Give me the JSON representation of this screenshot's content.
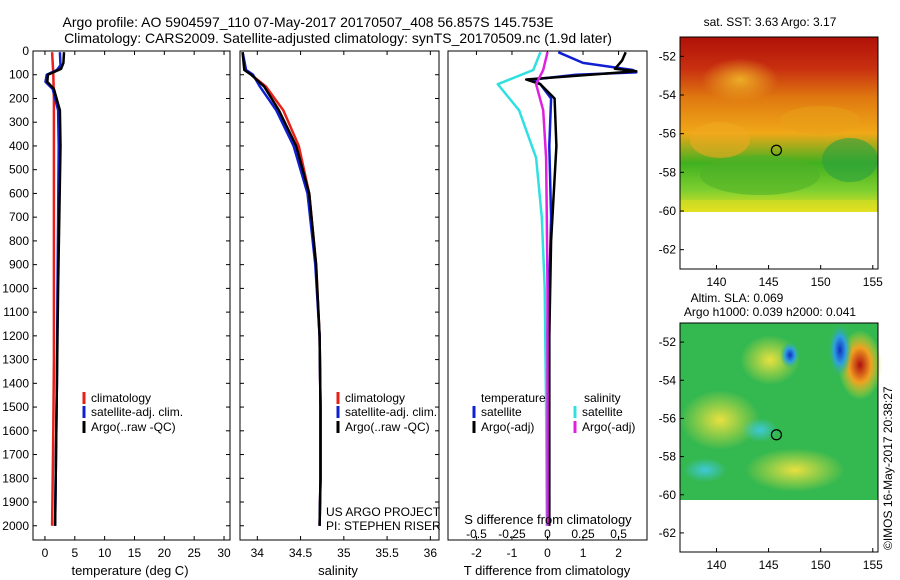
{
  "title_line1": "Argo profile: AO 5904597_110 07-May-2017 20170507_408 56.857S 145.753E",
  "title_line2": "Climatology: CARS2009. Satellite-adjusted climatology: synTS_20170509.nc (1.9d later)",
  "credit": "©IMOS 16-May-2017 20:38:27",
  "project_line1": "US ARGO PROJECT",
  "project_line2": "PI: STEPHEN RISER",
  "colors": {
    "climatology": "#e8201a",
    "satellite": "#1020d0",
    "argo": "#000000",
    "salinity_satellite": "#30e0e0",
    "salinity_argo": "#e020e0"
  },
  "chart_data": [
    {
      "id": "temperature",
      "type": "line",
      "xlabel": "temperature (deg C)",
      "ylabel": "",
      "xlim": [
        -2,
        31
      ],
      "ylim": [
        2060,
        0
      ],
      "xticks": [
        0,
        5,
        10,
        15,
        20,
        25,
        30
      ],
      "yticks": [
        0,
        100,
        200,
        300,
        400,
        500,
        600,
        700,
        800,
        900,
        1000,
        1100,
        1200,
        1300,
        1400,
        1500,
        1600,
        1700,
        1800,
        1900,
        2000
      ],
      "legend": [
        "climatology",
        "satellite-adj. clim.",
        "Argo(..raw -QC)"
      ],
      "series": [
        {
          "name": "climatology",
          "color": "#e8201a",
          "x": [
            1.2,
            1.3,
            1.4,
            1.5,
            1.5,
            1.5,
            1.5,
            1.5,
            1.5,
            1.4,
            1.3,
            1.2
          ],
          "y": [
            5,
            50,
            100,
            200,
            400,
            600,
            800,
            1000,
            1300,
            1600,
            1800,
            2000
          ]
        },
        {
          "name": "satellite-adj. clim.",
          "color": "#1020d0",
          "x": [
            2.5,
            2.6,
            2.0,
            0.3,
            0.1,
            1.3,
            2.2,
            2.3,
            2.2,
            2.1,
            2.0,
            1.8,
            1.7
          ],
          "y": [
            5,
            60,
            80,
            100,
            130,
            160,
            250,
            400,
            700,
            1000,
            1400,
            1800,
            2000
          ]
        },
        {
          "name": "Argo(..raw -QC)",
          "color": "#000000",
          "x": [
            3.2,
            3.1,
            2.7,
            0.5,
            0.4,
            1.5,
            2.5,
            2.6,
            2.4,
            2.2,
            2.0,
            1.8,
            1.7
          ],
          "y": [
            5,
            50,
            75,
            100,
            130,
            160,
            250,
            400,
            700,
            1000,
            1400,
            1800,
            2000
          ]
        }
      ]
    },
    {
      "id": "salinity",
      "type": "line",
      "xlabel": "salinity",
      "ylabel": "",
      "xlim": [
        33.8,
        36.1
      ],
      "ylim": [
        2060,
        0
      ],
      "xticks": [
        34,
        34.5,
        35,
        35.5,
        36
      ],
      "yticks": [
        0,
        100,
        200,
        300,
        400,
        500,
        600,
        700,
        800,
        900,
        1000,
        1100,
        1200,
        1300,
        1400,
        1500,
        1600,
        1700,
        1800,
        1900,
        2000
      ],
      "legend": [
        "climatology",
        "satellite-adj. clim.",
        "Argo(..raw -QC)"
      ],
      "series": [
        {
          "name": "climatology",
          "color": "#e8201a",
          "x": [
            33.83,
            33.86,
            33.93,
            34.1,
            34.3,
            34.48,
            34.6,
            34.68,
            34.72,
            34.73,
            34.73,
            34.72
          ],
          "y": [
            5,
            80,
            100,
            150,
            250,
            400,
            600,
            900,
            1200,
            1500,
            1800,
            2000
          ]
        },
        {
          "name": "satellite-adj. clim.",
          "color": "#1020d0",
          "x": [
            33.83,
            33.87,
            33.95,
            34.03,
            34.22,
            34.42,
            34.58,
            34.67,
            34.72,
            34.73,
            34.73,
            34.72
          ],
          "y": [
            5,
            80,
            100,
            150,
            250,
            400,
            600,
            900,
            1200,
            1500,
            1800,
            2000
          ]
        },
        {
          "name": "Argo(..raw -QC)",
          "color": "#000000",
          "x": [
            33.83,
            33.85,
            33.93,
            34.08,
            34.25,
            34.45,
            34.6,
            34.68,
            34.72,
            34.73,
            34.73,
            34.72
          ],
          "y": [
            5,
            80,
            100,
            150,
            250,
            400,
            600,
            900,
            1200,
            1500,
            1800,
            2000
          ]
        }
      ]
    },
    {
      "id": "difference",
      "type": "line",
      "xlabel": "T difference from climatology",
      "xlabel_top": "S difference from climatology",
      "xlim": [
        -2.8,
        2.8
      ],
      "ylim": [
        2060,
        0
      ],
      "xticks": [
        -2,
        -1,
        0,
        1,
        2
      ],
      "xticks_s": [
        -0.5,
        -0.25,
        0,
        0.25,
        0.5
      ],
      "legend_left_title": "temperature",
      "legend_right_title": "salinity",
      "legend": [
        "satellite",
        "Argo(-adj)",
        "satellite",
        "Argo(-adj)"
      ],
      "series": [
        {
          "name": "satellite",
          "quantity": "temperature",
          "color": "#1020d0",
          "x": [
            0.3,
            1.0,
            2.4,
            2.5,
            0.8,
            -0.4,
            -0.2,
            0.1,
            0.05,
            0.1,
            0.05,
            0.05,
            0.05
          ],
          "y": [
            5,
            50,
            80,
            90,
            100,
            120,
            140,
            200,
            400,
            700,
            1000,
            1500,
            2000
          ]
        },
        {
          "name": "Argo(-adj)",
          "quantity": "temperature",
          "color": "#000000",
          "x": [
            2.2,
            2.1,
            1.9,
            2.5,
            1.2,
            -0.6,
            -0.2,
            0.2,
            0.25,
            0.1,
            0.05,
            0.05
          ],
          "y": [
            5,
            40,
            75,
            85,
            100,
            120,
            140,
            200,
            400,
            800,
            1200,
            2000
          ]
        },
        {
          "name": "satellite",
          "quantity": "salinity",
          "color": "#30e0e0",
          "x": [
            -0.05,
            -0.1,
            -0.35,
            -0.2,
            -0.08,
            -0.04,
            -0.02,
            -0.01,
            -0.005
          ],
          "y": [
            5,
            80,
            140,
            250,
            450,
            700,
            1000,
            1500,
            2000
          ]
        },
        {
          "name": "Argo(-adj)",
          "quantity": "salinity",
          "color": "#e020e0",
          "x": [
            0.0,
            -0.03,
            -0.08,
            -0.03,
            -0.01,
            -0.005,
            0.0,
            0.0,
            0.0
          ],
          "y": [
            5,
            80,
            140,
            250,
            450,
            700,
            1000,
            1500,
            2000
          ]
        }
      ]
    },
    {
      "id": "sst-map",
      "type": "heatmap",
      "title": "sat. SST: 3.63 Argo: 3.17",
      "xlim": [
        136.5,
        155.5
      ],
      "ylim": [
        -63,
        -51
      ],
      "xticks": [
        140,
        145,
        150,
        155
      ],
      "yticks": [
        -52,
        -54,
        -56,
        -58,
        -60,
        -62
      ],
      "data_extent_lat": [
        -60,
        -51
      ],
      "marker": {
        "lon": 145.753,
        "lat": -56.857
      }
    },
    {
      "id": "sla-map",
      "type": "heatmap",
      "title": "Altim. SLA: 0.069",
      "subtitle": "Argo h1000: 0.039 h2000: 0.041",
      "xlim": [
        136.5,
        155.5
      ],
      "ylim": [
        -63,
        -51
      ],
      "xticks": [
        140,
        145,
        150,
        155
      ],
      "yticks": [
        -52,
        -54,
        -56,
        -58,
        -60,
        -62
      ],
      "data_extent_lat": [
        -60,
        -51
      ],
      "marker": {
        "lon": 145.753,
        "lat": -56.857
      }
    }
  ]
}
